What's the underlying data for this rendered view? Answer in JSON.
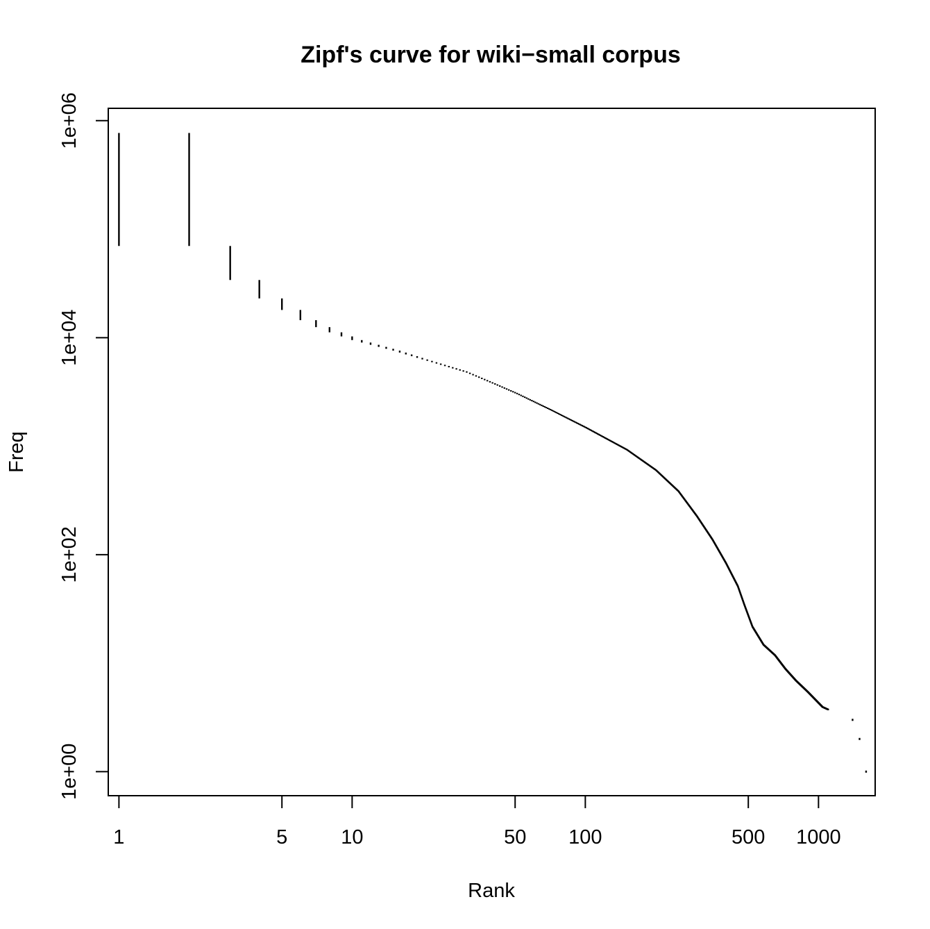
{
  "chart_data": {
    "type": "line",
    "title": "Zipf's curve for wiki−small corpus",
    "xlabel": "Rank",
    "ylabel": "Freq",
    "x_scale": "log",
    "y_scale": "log",
    "xlim": [
      0.9,
      1750
    ],
    "ylim": [
      0.6,
      1300000
    ],
    "x_ticks": [
      {
        "value": 1,
        "label": "1"
      },
      {
        "value": 5,
        "label": "5"
      },
      {
        "value": 10,
        "label": "10"
      },
      {
        "value": 50,
        "label": "50"
      },
      {
        "value": 100,
        "label": "100"
      },
      {
        "value": 500,
        "label": "500"
      },
      {
        "value": 1000,
        "label": "1000"
      }
    ],
    "y_ticks": [
      {
        "value": 1,
        "label": "1e+00"
      },
      {
        "value": 100,
        "label": "1e+02"
      },
      {
        "value": 10000,
        "label": "1e+04"
      },
      {
        "value": 1000000,
        "label": "1e+06"
      }
    ],
    "grid": false,
    "color": "#000000",
    "series": [
      {
        "style": "step",
        "points": [
          {
            "rank": 1,
            "freq": 770000
          },
          {
            "rank": 2,
            "freq": 70000
          },
          {
            "rank": 3,
            "freq": 34000
          },
          {
            "rank": 4,
            "freq": 23000
          },
          {
            "rank": 5,
            "freq": 18000
          },
          {
            "rank": 6,
            "freq": 14500
          },
          {
            "rank": 7,
            "freq": 12500
          },
          {
            "rank": 8,
            "freq": 11200
          },
          {
            "rank": 10,
            "freq": 9500
          },
          {
            "rank": 15,
            "freq": 7600
          },
          {
            "rank": 20,
            "freq": 6300
          },
          {
            "rank": 30,
            "freq": 4900
          },
          {
            "rank": 40,
            "freq": 3800
          },
          {
            "rank": 50,
            "freq": 3100
          },
          {
            "rank": 70,
            "freq": 2200
          },
          {
            "rank": 100,
            "freq": 1500
          },
          {
            "rank": 150,
            "freq": 940
          },
          {
            "rank": 200,
            "freq": 610
          },
          {
            "rank": 250,
            "freq": 390
          },
          {
            "rank": 300,
            "freq": 230
          },
          {
            "rank": 350,
            "freq": 140
          },
          {
            "rank": 400,
            "freq": 85
          },
          {
            "rank": 450,
            "freq": 52
          },
          {
            "rank": 480,
            "freq": 35
          },
          {
            "rank": 520,
            "freq": 22
          },
          {
            "rank": 580,
            "freq": 15
          },
          {
            "rank": 650,
            "freq": 12
          },
          {
            "rank": 720,
            "freq": 9
          },
          {
            "rank": 800,
            "freq": 7
          },
          {
            "rank": 900,
            "freq": 5.5
          },
          {
            "rank": 1040,
            "freq": 4
          },
          {
            "rank": 1400,
            "freq": 3
          },
          {
            "rank": 1500,
            "freq": 2
          },
          {
            "rank": 1600,
            "freq": 1
          }
        ]
      }
    ]
  }
}
